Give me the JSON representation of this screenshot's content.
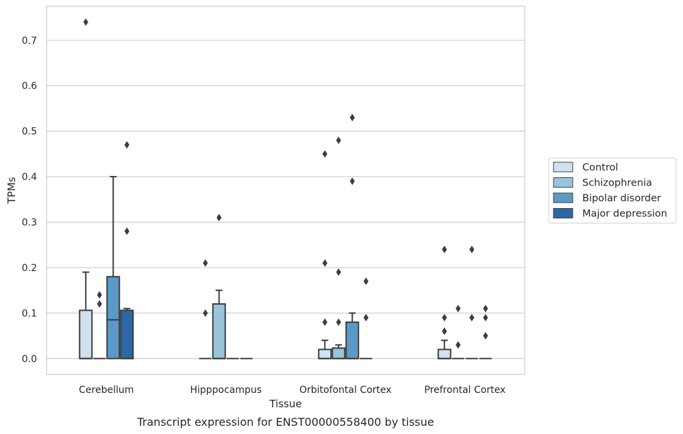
{
  "caption": "Transcript expression for ENST00000558400 by tissue",
  "chart_data": {
    "type": "box",
    "xlabel": "Tissue",
    "ylabel": "TPMs",
    "ylim": [
      -0.035,
      0.775
    ],
    "yticks": [
      "0.0",
      "0.1",
      "0.2",
      "0.3",
      "0.4",
      "0.5",
      "0.6",
      "0.7"
    ],
    "grid": "horizontal",
    "legend_position": "right",
    "categories": [
      "Cerebellum",
      "Hipppocampus",
      "Orbitofontal Cortex",
      "Prefrontal Cortex"
    ],
    "series": [
      {
        "name": "Control",
        "color": "#d1e1f0",
        "boxes": [
          {
            "q1": 0.0,
            "median": 0.0,
            "q3": 0.106,
            "whisker_low": 0.0,
            "whisker_high": 0.19,
            "outliers": [
              0.74
            ]
          },
          {
            "q1": 0.0,
            "median": 0.0,
            "q3": 0.0,
            "whisker_low": 0.0,
            "whisker_high": 0.0,
            "outliers": [
              0.1,
              0.21
            ]
          },
          {
            "q1": 0.0,
            "median": 0.0,
            "q3": 0.02,
            "whisker_low": 0.0,
            "whisker_high": 0.04,
            "outliers": [
              0.08,
              0.21,
              0.45
            ]
          },
          {
            "q1": 0.0,
            "median": 0.0,
            "q3": 0.02,
            "whisker_low": 0.0,
            "whisker_high": 0.04,
            "outliers": [
              0.06,
              0.09,
              0.24
            ]
          }
        ]
      },
      {
        "name": "Schizophrenia",
        "color": "#9ac3dd",
        "boxes": [
          {
            "q1": 0.0,
            "median": 0.0,
            "q3": 0.0,
            "whisker_low": 0.0,
            "whisker_high": 0.0,
            "outliers": [
              0.12,
              0.14
            ]
          },
          {
            "q1": 0.0,
            "median": 0.0,
            "q3": 0.12,
            "whisker_low": 0.0,
            "whisker_high": 0.15,
            "outliers": [
              0.31
            ]
          },
          {
            "q1": 0.0,
            "median": 0.0,
            "q3": 0.023,
            "whisker_low": 0.0,
            "whisker_high": 0.03,
            "outliers": [
              0.08,
              0.19,
              0.48
            ]
          },
          {
            "q1": 0.0,
            "median": 0.0,
            "q3": 0.0,
            "whisker_low": 0.0,
            "whisker_high": 0.0,
            "outliers": [
              0.03,
              0.11
            ]
          }
        ]
      },
      {
        "name": "Bipolar disorder",
        "color": "#5a9ac8",
        "boxes": [
          {
            "q1": 0.0,
            "median": 0.085,
            "q3": 0.18,
            "whisker_low": 0.0,
            "whisker_high": 0.4,
            "outliers": []
          },
          {
            "q1": 0.0,
            "median": 0.0,
            "q3": 0.0,
            "whisker_low": 0.0,
            "whisker_high": 0.0,
            "outliers": []
          },
          {
            "q1": 0.0,
            "median": 0.0,
            "q3": 0.08,
            "whisker_low": 0.0,
            "whisker_high": 0.1,
            "outliers": [
              0.39,
              0.53
            ]
          },
          {
            "q1": 0.0,
            "median": 0.0,
            "q3": 0.0,
            "whisker_low": 0.0,
            "whisker_high": 0.0,
            "outliers": [
              0.09,
              0.24
            ]
          }
        ]
      },
      {
        "name": "Major depression",
        "color": "#2c68a6",
        "boxes": [
          {
            "q1": 0.0,
            "median": 0.0,
            "q3": 0.106,
            "whisker_low": 0.0,
            "whisker_high": 0.11,
            "outliers": [
              0.28,
              0.47
            ]
          },
          {
            "q1": 0.0,
            "median": 0.0,
            "q3": 0.0,
            "whisker_low": 0.0,
            "whisker_high": 0.0,
            "outliers": []
          },
          {
            "q1": 0.0,
            "median": 0.0,
            "q3": 0.0,
            "whisker_low": 0.0,
            "whisker_high": 0.0,
            "outliers": [
              0.09,
              0.17
            ]
          },
          {
            "q1": 0.0,
            "median": 0.0,
            "q3": 0.0,
            "whisker_low": 0.0,
            "whisker_high": 0.0,
            "outliers": [
              0.05,
              0.09,
              0.11
            ]
          }
        ]
      }
    ]
  }
}
